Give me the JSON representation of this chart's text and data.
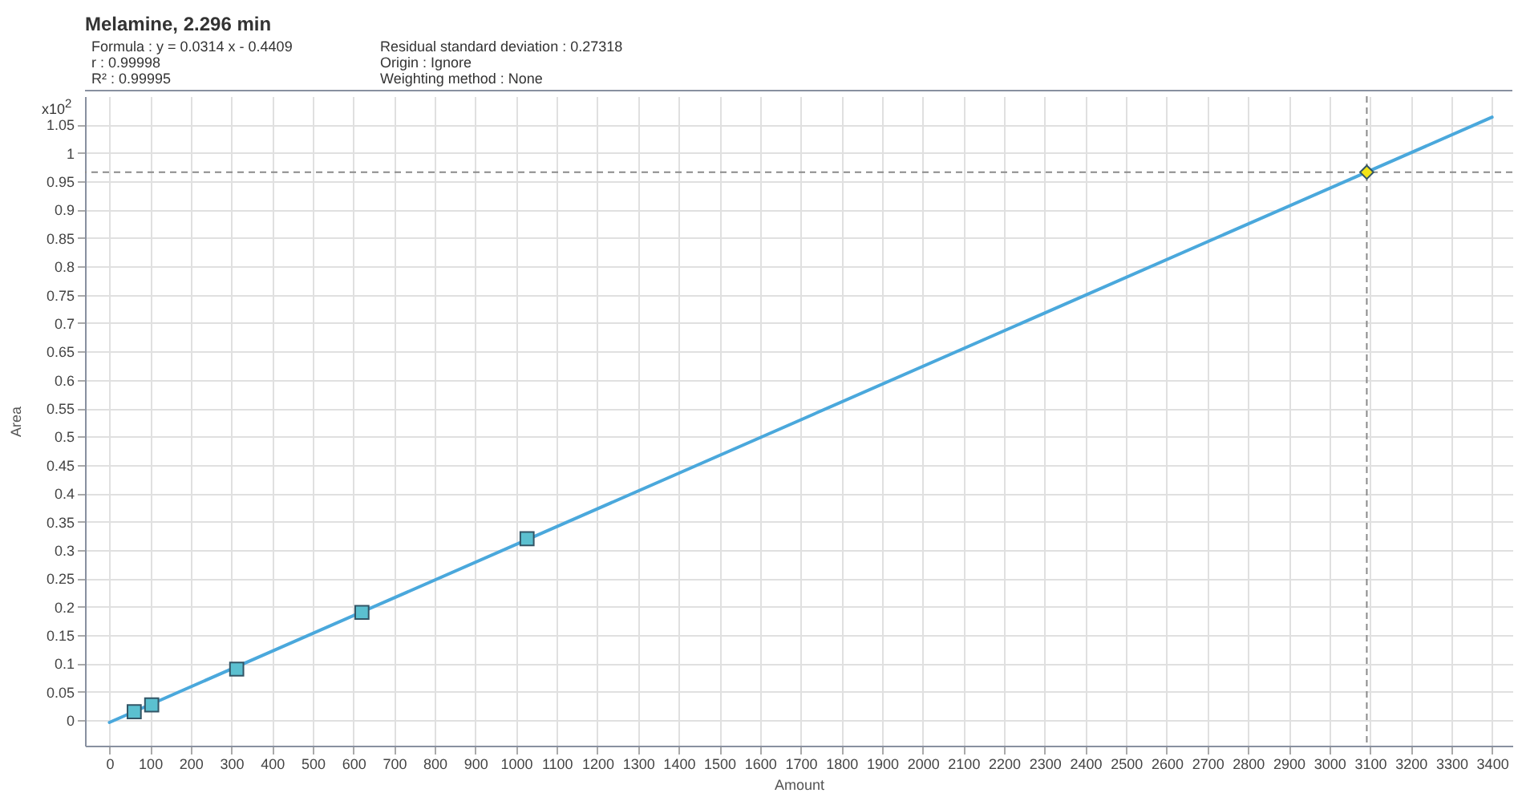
{
  "chart_data": {
    "type": "scatter",
    "title": "Melamine, 2.296 min",
    "xlabel": "Amount",
    "ylabel": "Area",
    "annotations": [
      "Formula : y = 0.0314 x - 0.4409",
      "r : 0.99998",
      "R² : 0.99995",
      "Residual standard deviation : 0.27318",
      "Origin : Ignore",
      "Weighting method : None",
      "x10$^{2}$"
    ],
    "series": [
      {
        "type": "line",
        "x": [
          0,
          3400
        ],
        "values": [
          -0.004,
          1.063
        ],
        "color": "#4aa8dc",
        "marker": "none"
      },
      {
        "type": "scatter",
        "x": [
          61,
          104,
          313,
          621,
          1027
        ],
        "values": [
          0.015,
          0.027,
          0.09,
          0.19,
          0.32
        ],
        "color": "#5bc0d0",
        "marker": "square"
      },
      {
        "type": "scatter",
        "x": [
          3092
        ],
        "values": [
          0.966
        ],
        "color": "#f2e418",
        "marker": "diamond"
      }
    ],
    "ref_lines": [
      {
        "axis": "y",
        "value": 0.966,
        "color": "#8a8a8a",
        "line_style": "dashed"
      },
      {
        "axis": "x",
        "value": 3092,
        "color": "#8a8a8a",
        "line_style": "dashed"
      }
    ],
    "xlim": [
      -60,
      3450
    ],
    "ylim": [
      -0.045,
      1.1
    ],
    "xticks": [
      0,
      100,
      200,
      300,
      400,
      500,
      600,
      700,
      800,
      900,
      1000,
      1100,
      1200,
      1300,
      1400,
      1500,
      1600,
      1700,
      1800,
      1900,
      2000,
      2100,
      2200,
      2300,
      2400,
      2500,
      2600,
      2700,
      2800,
      2900,
      3000,
      3100,
      3200,
      3300,
      3400
    ],
    "yticks": [
      0,
      0.05,
      0.1,
      0.15,
      0.2,
      0.25,
      0.3,
      0.35,
      0.4,
      0.45,
      0.5,
      0.55,
      0.6,
      0.65,
      0.7,
      0.75,
      0.8,
      0.85,
      0.9,
      0.95,
      1,
      1.05
    ],
    "grid": true
  }
}
